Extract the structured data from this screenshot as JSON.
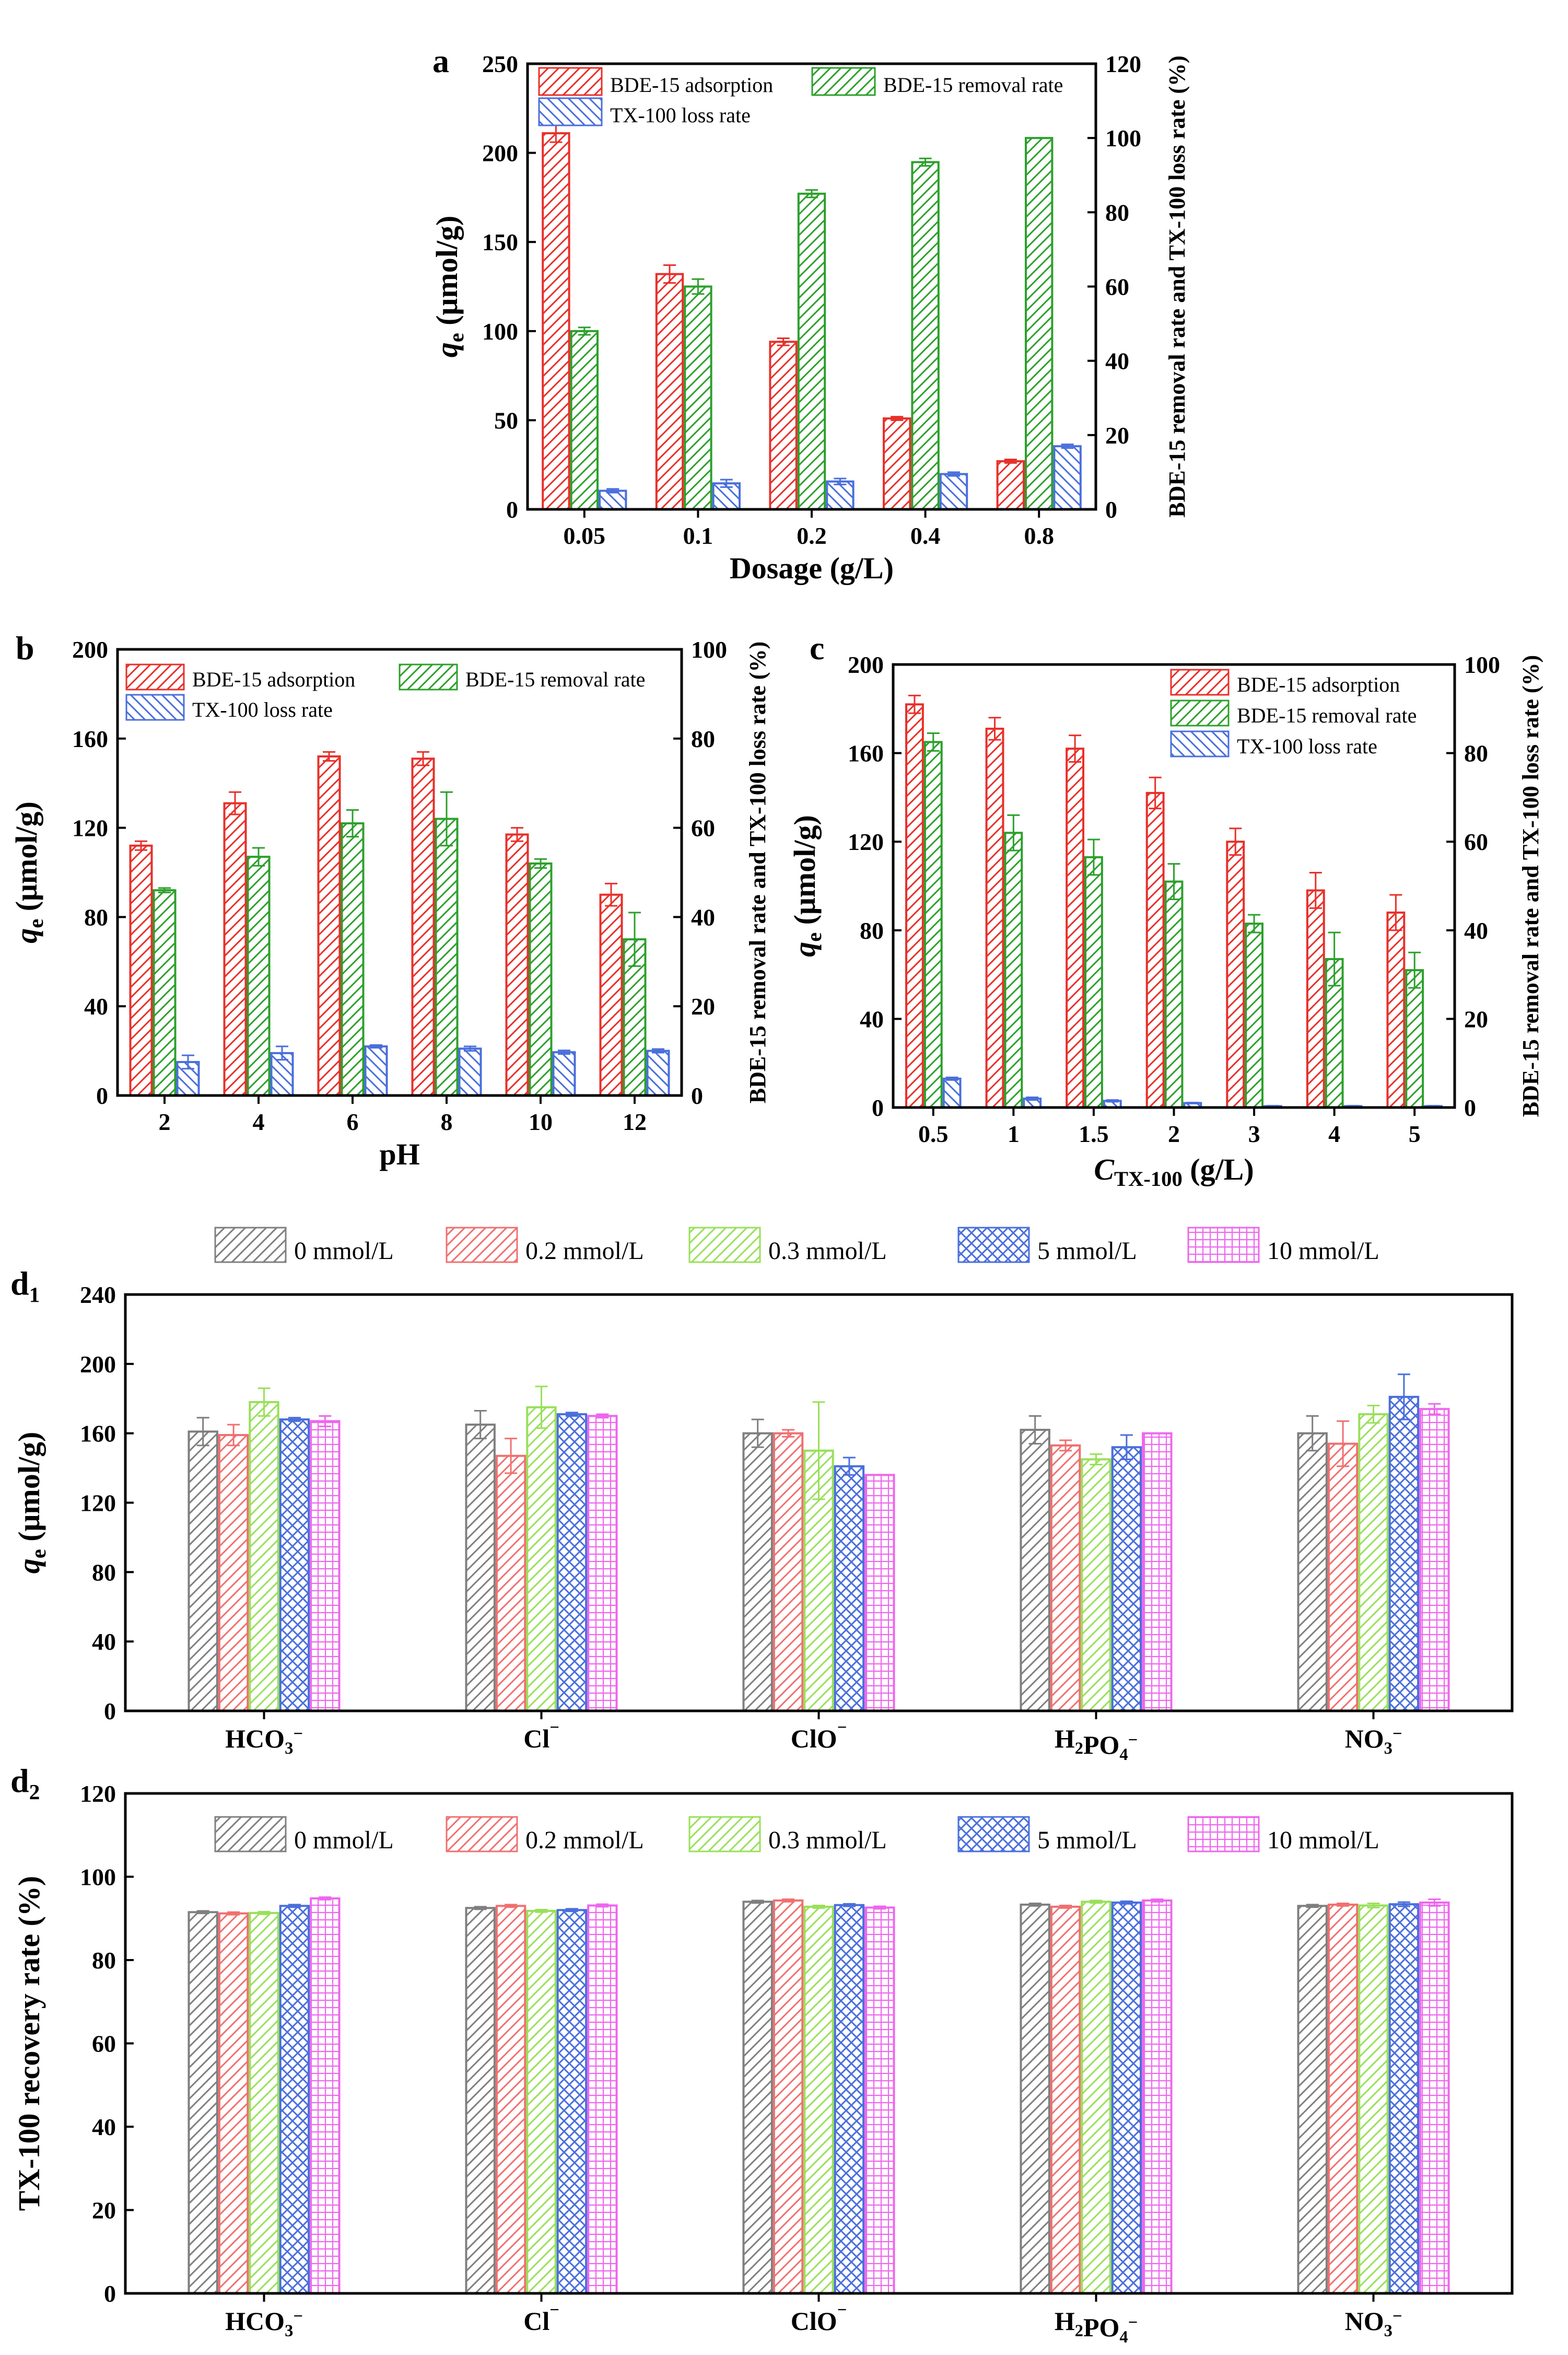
{
  "chart_data": [
    {
      "id": "a",
      "panel_label": "a",
      "type": "bar",
      "xlabel": "Dosage (g/L)",
      "ylabel": "q e (μmol/g)",
      "ylabel_main": "q",
      "ylabel_sub": "e",
      "ylabel_unit": " (μmol/g)",
      "y2label": "BDE-15 removal rate and TX-100 loss rate (%)",
      "categories": [
        "0.05",
        "0.1",
        "0.2",
        "0.4",
        "0.8"
      ],
      "ylim": [
        0,
        250
      ],
      "yticks": [
        0,
        50,
        100,
        150,
        200,
        250
      ],
      "y2lim": [
        0,
        120
      ],
      "y2ticks": [
        0,
        20,
        40,
        60,
        80,
        100,
        120
      ],
      "legend_position": "top",
      "series": [
        {
          "name": "BDE-15 adsorption",
          "axis": "left",
          "color": "#e8302a",
          "pattern": "hatch-fwd",
          "values": [
            211,
            132,
            94,
            51,
            27
          ],
          "errors": [
            5,
            5,
            2,
            1,
            1
          ]
        },
        {
          "name": "BDE-15 removal rate",
          "axis": "right",
          "color": "#2ca02c",
          "pattern": "hatch-fwd",
          "values": [
            48,
            60,
            85,
            93.5,
            100
          ],
          "errors": [
            1,
            2,
            1,
            1,
            0
          ]
        },
        {
          "name": "TX-100 loss rate",
          "axis": "right",
          "color": "#4a6fdc",
          "pattern": "hatch-back",
          "values": [
            5,
            7,
            7.5,
            9.5,
            17
          ],
          "errors": [
            0.5,
            1,
            0.8,
            0.5,
            0.5
          ]
        }
      ]
    },
    {
      "id": "b",
      "panel_label": "b",
      "type": "bar",
      "xlabel": "pH",
      "ylabel": "q e (μmol/g)",
      "ylabel_main": "q",
      "ylabel_sub": "e",
      "ylabel_unit": " (μmol/g)",
      "y2label": "BDE-15 removal rate and TX-100 loss rate (%)",
      "categories": [
        "2",
        "4",
        "6",
        "8",
        "10",
        "12"
      ],
      "ylim": [
        0,
        200
      ],
      "yticks": [
        0,
        40,
        80,
        120,
        160,
        200
      ],
      "y2lim": [
        0,
        100
      ],
      "y2ticks": [
        0,
        20,
        40,
        60,
        80,
        100
      ],
      "legend_position": "top",
      "series": [
        {
          "name": "BDE-15 adsorption",
          "axis": "left",
          "color": "#e8302a",
          "pattern": "hatch-fwd",
          "values": [
            112,
            131,
            152,
            151,
            117,
            90
          ],
          "errors": [
            2,
            5,
            2,
            3,
            3,
            5
          ]
        },
        {
          "name": "BDE-15 removal rate",
          "axis": "right",
          "color": "#2ca02c",
          "pattern": "hatch-fwd",
          "values": [
            46,
            53.5,
            61,
            62,
            52,
            35
          ],
          "errors": [
            0.5,
            2,
            3,
            6,
            1,
            6
          ]
        },
        {
          "name": "TX-100 loss rate",
          "axis": "right",
          "color": "#4a6fdc",
          "pattern": "hatch-back",
          "values": [
            7.5,
            9.5,
            11,
            10.5,
            9.7,
            10
          ],
          "errors": [
            1.5,
            1.5,
            0.3,
            0.5,
            0.4,
            0.4
          ]
        }
      ]
    },
    {
      "id": "c",
      "panel_label": "c",
      "type": "bar",
      "xlabel": "C TX-100 (g/L)",
      "xlabel_main": "C",
      "xlabel_sub": "TX-100",
      "xlabel_unit": " (g/L)",
      "ylabel": "q e (μmol/g)",
      "ylabel_main": "q",
      "ylabel_sub": "e",
      "ylabel_unit": " (μmol/g)",
      "y2label": "BDE-15 removal rate and TX-100 loss rate (%)",
      "categories": [
        "0.5",
        "1",
        "1.5",
        "2",
        "3",
        "4",
        "5"
      ],
      "ylim": [
        0,
        200
      ],
      "yticks": [
        0,
        40,
        80,
        120,
        160,
        200
      ],
      "y2lim": [
        0,
        100
      ],
      "y2ticks": [
        0,
        20,
        40,
        60,
        80,
        100
      ],
      "legend_position": "top-right",
      "series": [
        {
          "name": "BDE-15 adsorption",
          "axis": "left",
          "color": "#e8302a",
          "pattern": "hatch-fwd",
          "values": [
            182,
            171,
            162,
            142,
            120,
            98,
            88
          ],
          "errors": [
            4,
            5,
            6,
            7,
            6,
            8,
            8
          ]
        },
        {
          "name": "BDE-15 removal rate",
          "axis": "right",
          "color": "#2ca02c",
          "pattern": "hatch-fwd",
          "values": [
            82.5,
            62,
            56.5,
            51,
            41.5,
            33.5,
            31
          ],
          "errors": [
            2,
            4,
            4,
            4,
            2,
            6,
            4
          ]
        },
        {
          "name": "TX-100 loss rate",
          "axis": "right",
          "color": "#4a6fdc",
          "pattern": "hatch-back",
          "values": [
            6.5,
            2,
            1.5,
            1,
            0.3,
            0.3,
            0.3
          ],
          "errors": [
            0.3,
            0.3,
            0.2,
            0.1,
            0.1,
            0.1,
            0.1
          ]
        }
      ]
    },
    {
      "id": "d1",
      "panel_label": "d",
      "panel_label_sub": "1",
      "type": "bar",
      "xlabel": "",
      "ylabel": "q e (μmol/g)",
      "ylabel_main": "q",
      "ylabel_sub": "e",
      "ylabel_unit": " (μmol/g)",
      "categories": [
        "HCO3−",
        "Cl−",
        "ClO−",
        "H2PO4−",
        "NO3−"
      ],
      "category_parts": [
        [
          {
            "t": "HCO"
          },
          {
            "t": "3",
            "sub": true
          },
          {
            "t": "−",
            "sup": true
          }
        ],
        [
          {
            "t": "Cl"
          },
          {
            "t": "−",
            "sup": true
          }
        ],
        [
          {
            "t": "ClO"
          },
          {
            "t": "−",
            "sup": true
          }
        ],
        [
          {
            "t": "H"
          },
          {
            "t": "2",
            "sub": true
          },
          {
            "t": "PO"
          },
          {
            "t": "4",
            "sub": true
          },
          {
            "t": "−",
            "sup": true
          }
        ],
        [
          {
            "t": "NO"
          },
          {
            "t": "3",
            "sub": true
          },
          {
            "t": "−",
            "sup": true
          }
        ]
      ],
      "ylim": [
        0,
        240
      ],
      "yticks": [
        0,
        40,
        80,
        120,
        160,
        200,
        240
      ],
      "legend_position": "top",
      "series": [
        {
          "name": "0 mmol/L",
          "color": "#7f7f7f",
          "pattern": "hatch-fwd",
          "values": [
            161,
            165,
            160,
            162,
            160
          ],
          "errors": [
            8,
            8,
            8,
            8,
            10
          ]
        },
        {
          "name": "0.2 mmol/L",
          "color": "#f07070",
          "pattern": "hatch-fwd",
          "values": [
            159,
            147,
            160,
            153,
            154
          ],
          "errors": [
            6,
            10,
            2,
            3,
            13
          ]
        },
        {
          "name": "0.3 mmol/L",
          "color": "#99e05a",
          "pattern": "hatch-fwd",
          "values": [
            178,
            175,
            150,
            145,
            171
          ],
          "errors": [
            8,
            12,
            28,
            3,
            5
          ]
        },
        {
          "name": "5 mmol/L",
          "color": "#4a6fdc",
          "pattern": "cross-diag",
          "values": [
            168,
            171,
            141,
            152,
            181
          ],
          "errors": [
            1,
            1,
            5,
            7,
            13
          ]
        },
        {
          "name": "10 mmol/L",
          "color": "#ee66ee",
          "pattern": "grid",
          "values": [
            167,
            170,
            136,
            160,
            174
          ],
          "errors": [
            3,
            1,
            0,
            0,
            3
          ]
        }
      ]
    },
    {
      "id": "d2",
      "panel_label": "d",
      "panel_label_sub": "2",
      "type": "bar",
      "xlabel": "",
      "ylabel": "TX-100 recovery rate (%)",
      "categories": [
        "HCO3−",
        "Cl−",
        "ClO−",
        "H2PO4−",
        "NO3−"
      ],
      "category_parts": [
        [
          {
            "t": "HCO"
          },
          {
            "t": "3",
            "sub": true
          },
          {
            "t": "−",
            "sup": true
          }
        ],
        [
          {
            "t": "Cl"
          },
          {
            "t": "−",
            "sup": true
          }
        ],
        [
          {
            "t": "ClO"
          },
          {
            "t": "−",
            "sup": true
          }
        ],
        [
          {
            "t": "H"
          },
          {
            "t": "2",
            "sub": true
          },
          {
            "t": "PO"
          },
          {
            "t": "4",
            "sub": true
          },
          {
            "t": "−",
            "sup": true
          }
        ],
        [
          {
            "t": "NO"
          },
          {
            "t": "3",
            "sub": true
          },
          {
            "t": "−",
            "sup": true
          }
        ]
      ],
      "ylim": [
        0,
        120
      ],
      "yticks": [
        0,
        20,
        40,
        60,
        80,
        100,
        120
      ],
      "legend_position": "top",
      "series": [
        {
          "name": "0 mmol/L",
          "color": "#7f7f7f",
          "pattern": "hatch-fwd",
          "values": [
            91.5,
            92.5,
            94,
            93.3,
            93
          ],
          "errors": [
            0.3,
            0.3,
            0.3,
            0.3,
            0.3
          ]
        },
        {
          "name": "0.2 mmol/L",
          "color": "#f07070",
          "pattern": "hatch-fwd",
          "values": [
            91.2,
            93,
            94.3,
            92.8,
            93.3
          ],
          "errors": [
            0.3,
            0.3,
            0.3,
            0.3,
            0.3
          ]
        },
        {
          "name": "0.3 mmol/L",
          "color": "#99e05a",
          "pattern": "hatch-fwd",
          "values": [
            91.3,
            91.8,
            92.8,
            94,
            93.1
          ],
          "errors": [
            0.3,
            0.3,
            0.3,
            0.3,
            0.5
          ]
        },
        {
          "name": "5 mmol/L",
          "color": "#4a6fdc",
          "pattern": "cross-diag",
          "values": [
            93,
            92,
            93.2,
            93.8,
            93.4
          ],
          "errors": [
            0.3,
            0.3,
            0.3,
            0.3,
            0.5
          ]
        },
        {
          "name": "10 mmol/L",
          "color": "#ee66ee",
          "pattern": "grid",
          "values": [
            94.8,
            93.1,
            92.6,
            94.3,
            93.8
          ],
          "errors": [
            0.3,
            0.3,
            0.3,
            0.3,
            0.8
          ]
        }
      ]
    }
  ]
}
